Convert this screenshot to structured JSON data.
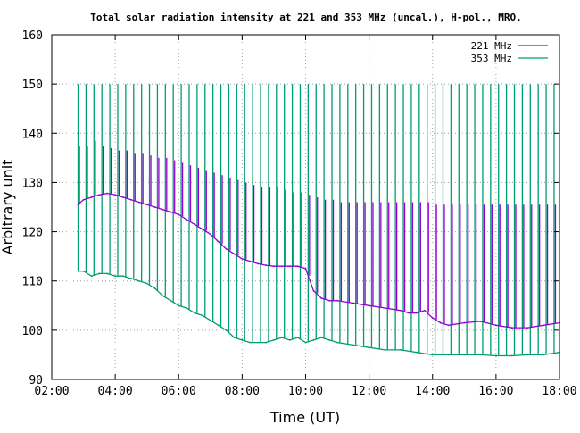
{
  "chart_data": {
    "type": "line",
    "title": "Total solar radiation intensity at 221 and 353 MHz (uncal.), H-pol., MRO.",
    "xlabel": "Time (UT)",
    "ylabel": "Arbitrary unit",
    "xlim": [
      2,
      18
    ],
    "ylim": [
      90,
      160
    ],
    "x_ticks": [
      {
        "value": 2,
        "label": "02:00"
      },
      {
        "value": 4,
        "label": "04:00"
      },
      {
        "value": 6,
        "label": "06:00"
      },
      {
        "value": 8,
        "label": "08:00"
      },
      {
        "value": 10,
        "label": "10:00"
      },
      {
        "value": 12,
        "label": "12:00"
      },
      {
        "value": 14,
        "label": "14:00"
      },
      {
        "value": 16,
        "label": "16:00"
      },
      {
        "value": 18,
        "label": "18:00"
      }
    ],
    "y_ticks": [
      {
        "value": 90,
        "label": "90"
      },
      {
        "value": 100,
        "label": "100"
      },
      {
        "value": 110,
        "label": "110"
      },
      {
        "value": 120,
        "label": "120"
      },
      {
        "value": 130,
        "label": "130"
      },
      {
        "value": 140,
        "label": "140"
      },
      {
        "value": 150,
        "label": "150"
      },
      {
        "value": 160,
        "label": "160"
      }
    ],
    "grid": true,
    "grid_style": "dotted",
    "legend_position": "top-right",
    "series": [
      {
        "name": "221 MHz",
        "color": "#9400d3",
        "x": [
          2.83,
          3.0,
          3.25,
          3.5,
          3.75,
          4.0,
          4.25,
          4.5,
          4.75,
          5.0,
          5.25,
          5.5,
          5.75,
          6.0,
          6.25,
          6.5,
          6.75,
          7.0,
          7.25,
          7.5,
          7.75,
          8.0,
          8.25,
          8.5,
          8.75,
          9.0,
          9.25,
          9.5,
          9.75,
          10.0,
          10.25,
          10.5,
          10.75,
          11.0,
          11.5,
          12.0,
          12.5,
          13.0,
          13.25,
          13.5,
          13.75,
          14.0,
          14.25,
          14.5,
          15.0,
          15.5,
          16.0,
          16.5,
          17.0,
          17.5,
          18.0
        ],
        "y": [
          125.5,
          126.5,
          127.0,
          127.5,
          127.8,
          127.5,
          127.0,
          126.5,
          126.0,
          125.5,
          125.0,
          124.5,
          124.0,
          123.5,
          122.5,
          121.5,
          120.5,
          119.5,
          118.0,
          116.5,
          115.5,
          114.5,
          114.0,
          113.5,
          113.2,
          113.0,
          113.0,
          113.0,
          113.0,
          112.5,
          108.0,
          106.5,
          106.0,
          106.0,
          105.5,
          105.0,
          104.5,
          104.0,
          103.5,
          103.5,
          104.0,
          102.5,
          101.5,
          101.0,
          101.5,
          101.8,
          101.0,
          100.5,
          100.5,
          101.0,
          101.5
        ]
      },
      {
        "name": "353 MHz",
        "color": "#009e73",
        "x": [
          2.83,
          3.0,
          3.25,
          3.5,
          3.75,
          4.0,
          4.25,
          4.5,
          4.75,
          5.0,
          5.25,
          5.5,
          5.75,
          6.0,
          6.25,
          6.5,
          6.75,
          7.0,
          7.25,
          7.5,
          7.75,
          8.0,
          8.25,
          8.5,
          8.75,
          9.0,
          9.25,
          9.5,
          9.75,
          10.0,
          10.25,
          10.5,
          10.75,
          11.0,
          11.5,
          12.0,
          12.5,
          13.0,
          13.5,
          14.0,
          14.5,
          15.0,
          15.5,
          16.0,
          16.5,
          17.0,
          17.5,
          18.0
        ],
        "y": [
          112.0,
          112.0,
          111.0,
          111.5,
          111.5,
          111.0,
          111.0,
          110.5,
          110.0,
          109.5,
          108.5,
          107.0,
          106.0,
          105.0,
          104.5,
          103.5,
          103.0,
          102.0,
          101.0,
          100.0,
          98.5,
          98.0,
          97.5,
          97.5,
          97.5,
          98.0,
          98.5,
          98.0,
          98.5,
          97.5,
          98.0,
          98.5,
          98.0,
          97.5,
          97.0,
          96.5,
          96.0,
          96.0,
          95.5,
          95.0,
          95.0,
          95.0,
          95.0,
          94.8,
          94.8,
          95.0,
          95.0,
          95.5
        ]
      }
    ],
    "spikes": {
      "x": [
        2.83,
        3.08,
        3.33,
        3.58,
        3.83,
        4.08,
        4.33,
        4.58,
        4.83,
        5.08,
        5.33,
        5.58,
        5.83,
        6.08,
        6.33,
        6.58,
        6.83,
        7.08,
        7.33,
        7.58,
        7.83,
        8.08,
        8.33,
        8.58,
        8.83,
        9.08,
        9.33,
        9.58,
        9.83,
        10.08,
        10.33,
        10.58,
        10.83,
        11.08,
        11.33,
        11.58,
        11.83,
        12.08,
        12.33,
        12.58,
        12.83,
        13.08,
        13.33,
        13.58,
        13.83,
        14.08,
        14.33,
        14.58,
        14.83,
        15.08,
        15.33,
        15.58,
        15.83,
        16.08,
        16.33,
        16.58,
        16.83,
        17.08,
        17.33,
        17.58,
        17.83
      ],
      "top_353": 150,
      "top_221": [
        137.5,
        137.5,
        138.5,
        137.5,
        137.0,
        136.5,
        136.5,
        136.0,
        136.0,
        135.5,
        135.0,
        135.0,
        134.5,
        134.0,
        133.5,
        133.0,
        132.5,
        132.0,
        131.5,
        131.0,
        130.5,
        130.0,
        129.5,
        129.0,
        129.0,
        129.0,
        128.5,
        128.0,
        128.0,
        127.5,
        127.0,
        126.5,
        126.5,
        126.0,
        126.0,
        126.0,
        126.0,
        126.0,
        126.0,
        126.0,
        126.0,
        126.0,
        126.0,
        126.0,
        126.0,
        125.5,
        125.5,
        125.5,
        125.5,
        125.5,
        125.5,
        125.5,
        125.5,
        125.5,
        125.5,
        125.5,
        125.5,
        125.5,
        125.5,
        125.5,
        125.5
      ]
    }
  }
}
